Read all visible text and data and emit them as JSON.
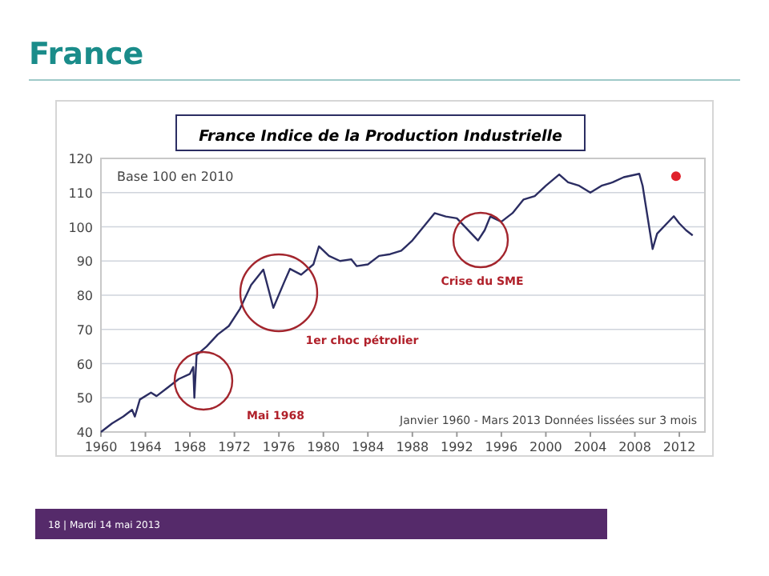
{
  "chart_data": {
    "type": "line",
    "title": "France",
    "subtitle": "France Indice de la Production Industrielle",
    "xlim": [
      1960,
      2014.3
    ],
    "xticks": [
      1960,
      1964,
      1968,
      1972,
      1976,
      1980,
      1984,
      1988,
      1992,
      1996,
      2000,
      2004,
      2008,
      2012
    ],
    "ylim": [
      40,
      120
    ],
    "yticks": [
      40,
      50,
      60,
      70,
      80,
      90,
      100,
      110,
      120
    ],
    "grid": "y",
    "series": [
      {
        "color": "#2b2d62",
        "x": [
          1960,
          1961,
          1962,
          1962.8,
          1963.05,
          1963.5,
          1964.5,
          1965,
          1966,
          1967,
          1968,
          1968.3,
          1968.4,
          1968.6,
          1969.5,
          1970.5,
          1971.5,
          1972.5,
          1973.5,
          1974.6,
          1975.5,
          1976.5,
          1977,
          1978,
          1979.1,
          1979.6,
          1980.5,
          1981.5,
          1982.5,
          1983,
          1984,
          1985,
          1986,
          1987,
          1988,
          1989,
          1990,
          1991,
          1992,
          1993.9,
          1994.5,
          1995,
          1996,
          1997,
          1998,
          1999,
          2000,
          2001.2,
          2002,
          2003,
          2004,
          2005,
          2006,
          2007,
          2008.4,
          2008.7,
          2009.6,
          2010,
          2011.5,
          2012,
          2012.6,
          2013.2
        ],
        "values": [
          40,
          42.5,
          44.5,
          46.5,
          44.5,
          49.5,
          51.5,
          50.5,
          53,
          55.5,
          57,
          59,
          50,
          62.5,
          65,
          68.5,
          71,
          76,
          83,
          87.5,
          76.3,
          84,
          87.7,
          86,
          89,
          94.3,
          91.5,
          90,
          90.5,
          88.5,
          89,
          91.5,
          92,
          93,
          96,
          100,
          104,
          103,
          102.5,
          96,
          99,
          103,
          101.5,
          104,
          108,
          109,
          112,
          115.3,
          113,
          112,
          110,
          112,
          113,
          114.5,
          115.5,
          112,
          93.5,
          98,
          103.1,
          101,
          99,
          97.5
        ]
      },
      {
        "type": "scatter",
        "color": "#e0202a",
        "marker": "circle",
        "x": [
          2011.7
        ],
        "values": [
          114.8
        ]
      }
    ],
    "annotations": [
      "Mai 1968",
      "1er choc pétrolier",
      "Crise du SME",
      "Base 100 en 2010",
      "Janvier 1960 - Mars 2013 Données lissées sur 3 mois",
      "18 | Mardi 14 mai 2013"
    ]
  }
}
